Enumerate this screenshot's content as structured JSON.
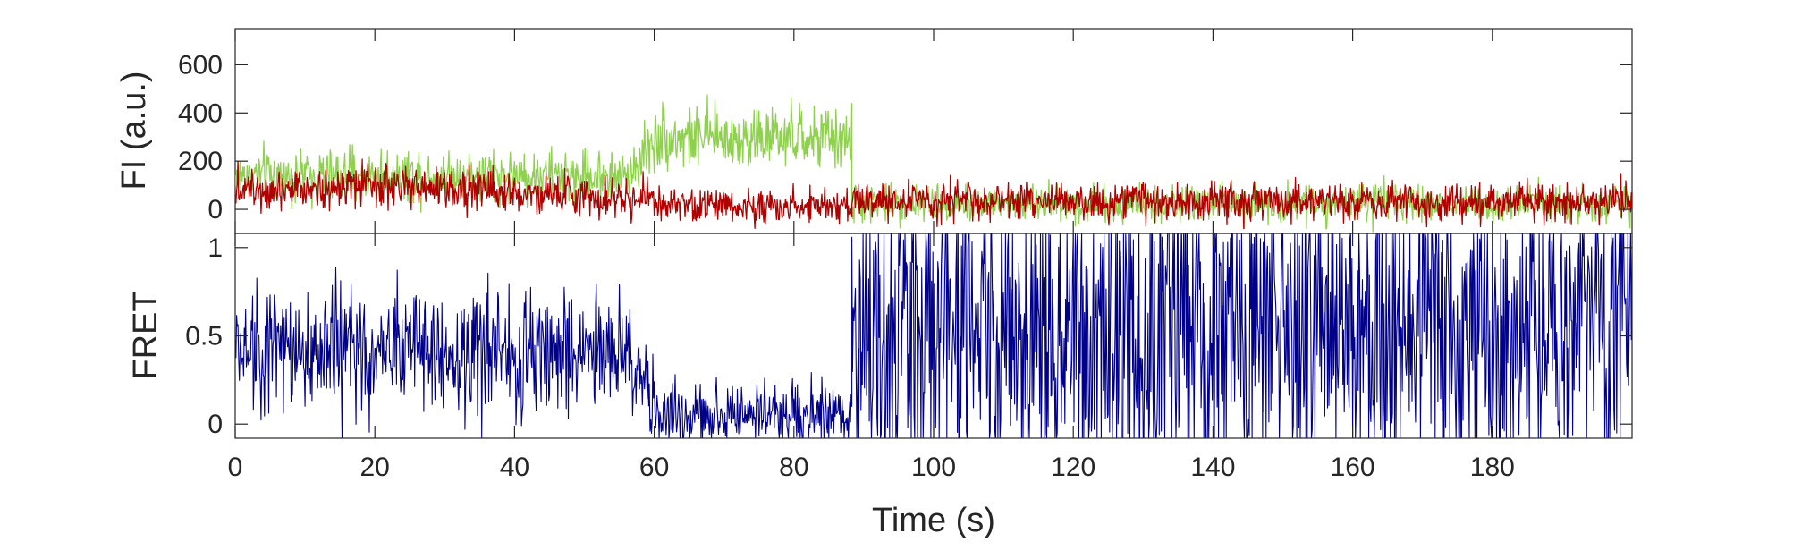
{
  "chart_data": [
    {
      "type": "line",
      "panel": "top",
      "ylabel": "FI (a.u.)",
      "xlim": [
        0,
        200
      ],
      "ylim": [
        -100,
        750
      ],
      "yticks": [
        0,
        200,
        400,
        600
      ],
      "ytick_labels": [
        "0",
        "200",
        "400",
        "600"
      ],
      "grid": false,
      "colors": {
        "donor": "#8fd14f",
        "acceptor": "#b00000"
      },
      "series": [
        {
          "key": "donor",
          "color": "#8fd14f",
          "segments": [
            {
              "t_start": 0,
              "t_end": 57,
              "mean_start": 140,
              "mean_end": 140,
              "noise": 55
            },
            {
              "t_start": 57,
              "t_end": 60,
              "mean_start": 180,
              "mean_end": 280,
              "noise": 60
            },
            {
              "t_start": 60,
              "t_end": 88.3,
              "mean_start": 300,
              "mean_end": 290,
              "noise": 65
            },
            {
              "t_start": 88.3,
              "t_end": 200,
              "mean_start": 25,
              "mean_end": 25,
              "noise": 40
            }
          ]
        },
        {
          "key": "acceptor",
          "color": "#b00000",
          "segments": [
            {
              "t_start": 0,
              "t_end": 40,
              "mean_start": 95,
              "mean_end": 85,
              "noise": 45
            },
            {
              "t_start": 40,
              "t_end": 60,
              "mean_start": 70,
              "mean_end": 40,
              "noise": 40
            },
            {
              "t_start": 60,
              "t_end": 88.3,
              "mean_start": 15,
              "mean_end": 15,
              "noise": 35
            },
            {
              "t_start": 88.3,
              "t_end": 200,
              "mean_start": 35,
              "mean_end": 30,
              "noise": 40
            }
          ]
        }
      ]
    },
    {
      "type": "line",
      "panel": "bottom",
      "xlabel": "Time (s)",
      "ylabel": "FRET",
      "xlim": [
        0,
        200
      ],
      "ylim": [
        -0.08,
        1.08
      ],
      "xticks": [
        0,
        20,
        40,
        60,
        80,
        100,
        120,
        140,
        160,
        180
      ],
      "xtick_labels": [
        "0",
        "20",
        "40",
        "60",
        "80",
        "100",
        "120",
        "140",
        "160",
        "180"
      ],
      "yticks": [
        0,
        0.5,
        1
      ],
      "ytick_labels": [
        "0",
        "0.5",
        "1"
      ],
      "grid": false,
      "series": [
        {
          "key": "fret",
          "color": "#00008b",
          "segments": [
            {
              "t_start": 0,
              "t_end": 57,
              "mean_start": 0.42,
              "mean_end": 0.38,
              "noise": 0.18
            },
            {
              "t_start": 57,
              "t_end": 60,
              "mean_start": 0.3,
              "mean_end": 0.1,
              "noise": 0.12
            },
            {
              "t_start": 60,
              "t_end": 88.3,
              "mean_start": 0.06,
              "mean_end": 0.06,
              "noise": 0.09
            },
            {
              "t_start": 88.3,
              "t_end": 200,
              "mean_start": 0.55,
              "mean_end": 0.55,
              "noise": 0.55
            }
          ]
        }
      ]
    }
  ]
}
